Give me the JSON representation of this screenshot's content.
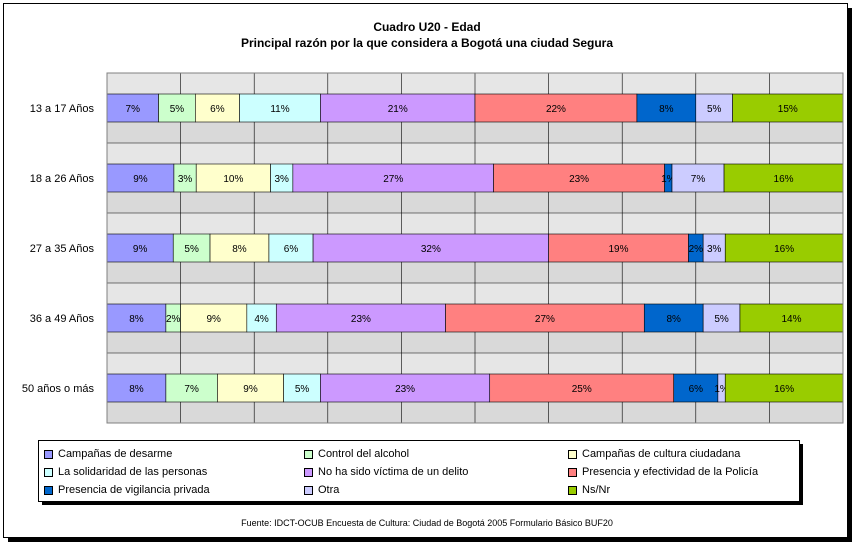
{
  "chart_data": {
    "type": "bar",
    "orientation": "horizontal",
    "stacked": true,
    "normalized": true,
    "title": "Cuadro U20 - Edad",
    "subtitle": "Principal razón por la que considera a Bogotá una ciudad Segura",
    "source": "Fuente: IDCT-OCUB Encuesta de Cultura: Ciudad de Bogotá 2005 Formulario Básico BUF20",
    "categories": [
      "13 a 17 Años",
      "18 a 26 Años",
      "27 a 35 Años",
      "36 a 49 Años",
      "50 años o más"
    ],
    "grid": true,
    "legend_position": "bottom",
    "series": [
      {
        "name": "Campañas de desarme",
        "color": "#9999ff",
        "values": [
          7,
          9,
          9,
          8,
          8
        ],
        "labels": [
          "7%",
          "9%",
          "9%",
          "8%",
          "8%"
        ]
      },
      {
        "name": "Control del alcohol",
        "color": "#ccffcc",
        "values": [
          5,
          3,
          5,
          2,
          7
        ],
        "labels": [
          "5%",
          "3%",
          "5%",
          "2%",
          "7%"
        ]
      },
      {
        "name": "Campañas de cultura ciudadana",
        "color": "#ffffcc",
        "values": [
          6,
          10,
          8,
          9,
          9
        ],
        "labels": [
          "6%",
          "10%",
          "8%",
          "9%",
          "9%"
        ]
      },
      {
        "name": "La solidaridad de las personas",
        "color": "#ccffff",
        "values": [
          11,
          3,
          6,
          4,
          5
        ],
        "labels": [
          "11%",
          "3%",
          "6%",
          "4%",
          "5%"
        ]
      },
      {
        "name": "No ha sido víctima de un delito",
        "color": "#cc99ff",
        "values": [
          21,
          27,
          32,
          23,
          23
        ],
        "labels": [
          "21%",
          "27%",
          "32%",
          "23%",
          "23%"
        ]
      },
      {
        "name": "Presencia y  efectividad de la Policía",
        "color": "#ff8080",
        "values": [
          22,
          23,
          19,
          27,
          25
        ],
        "labels": [
          "22%",
          "23%",
          "19%",
          "27%",
          "25%"
        ]
      },
      {
        "name": "Presencia de vigilancia privada",
        "color": "#0066cc",
        "values": [
          8,
          1,
          2,
          8,
          6
        ],
        "labels": [
          "8%",
          "1%",
          "2%",
          "8%",
          "6%"
        ]
      },
      {
        "name": "Otra",
        "color": "#ccccff",
        "values": [
          5,
          7,
          3,
          5,
          1
        ],
        "labels": [
          "5%",
          "7%",
          "3%",
          "5%",
          "1%"
        ]
      },
      {
        "name": "Ns/Nr",
        "color": "#99cc00",
        "values": [
          15,
          16,
          16,
          14,
          16
        ],
        "labels": [
          "15%",
          "16%",
          "16%",
          "14%",
          "16%"
        ]
      }
    ]
  }
}
